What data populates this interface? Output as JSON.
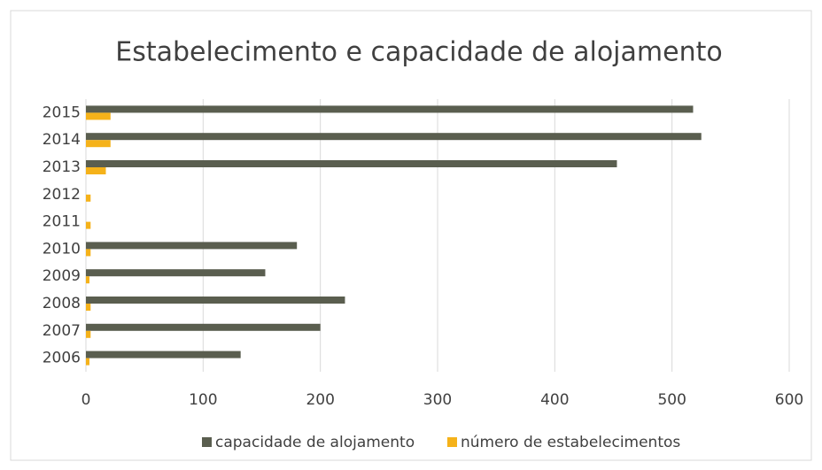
{
  "chart_data": {
    "type": "bar",
    "orientation": "horizontal",
    "title": "Estabelecimento e capacidade de alojamento",
    "categories": [
      "2006",
      "2007",
      "2008",
      "2009",
      "2010",
      "2011",
      "2012",
      "2013",
      "2014",
      "2015"
    ],
    "series": [
      {
        "name": "capacidade de alojamento",
        "color": "#5a5e4f",
        "values": [
          132,
          200,
          221,
          153,
          180,
          0,
          0,
          453,
          525,
          518
        ]
      },
      {
        "name": "número de estabelecimentos",
        "color": "#f5b21a",
        "values": [
          3,
          4,
          4,
          3,
          4,
          4,
          4,
          17,
          21,
          21
        ]
      }
    ],
    "xlim": [
      0,
      600
    ],
    "xticks": [
      0,
      100,
      200,
      300,
      400,
      500,
      600
    ],
    "grid": true,
    "legend": "bottom"
  }
}
